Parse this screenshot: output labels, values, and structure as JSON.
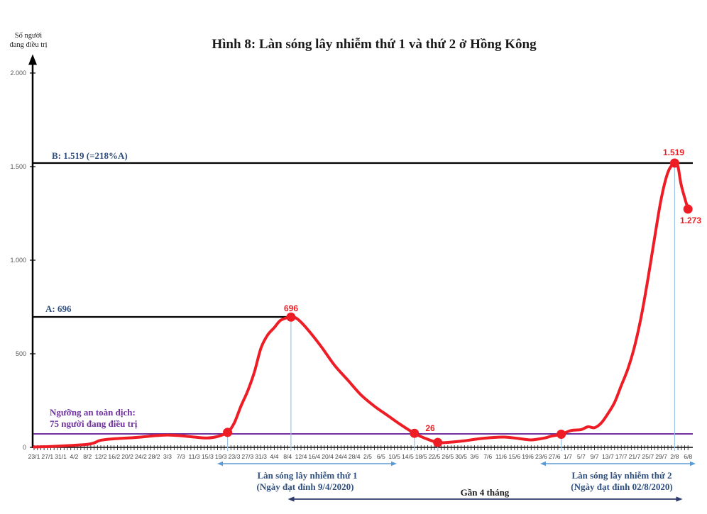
{
  "chart_data": {
    "type": "line",
    "title": "Hình 8: Làn sóng lây nhiễm thứ 1 và thứ 2 ở Hồng Kông",
    "ylabel": "Số người đang điều trị",
    "xlabel": "",
    "ylim": [
      0,
      2000
    ],
    "yticks": [
      0,
      500,
      1000,
      1500,
      2000
    ],
    "ytick_labels": [
      "0",
      "500",
      "1.000",
      "1.500",
      "2.000"
    ],
    "grid": false,
    "legend": null,
    "x_tick_labels": [
      "23/1",
      "27/1",
      "31/1",
      "4/2",
      "8/2",
      "12/2",
      "16/2",
      "20/2",
      "24/2",
      "28/2",
      "3/3",
      "7/3",
      "11/3",
      "15/3",
      "19/3",
      "23/3",
      "27/3",
      "31/3",
      "4/4",
      "8/4",
      "12/4",
      "16/4",
      "20/4",
      "24/4",
      "28/4",
      "2/5",
      "6/5",
      "10/5",
      "14/5",
      "18/5",
      "22/5",
      "26/5",
      "30/5",
      "3/6",
      "7/6",
      "11/6",
      "15/6",
      "19/6",
      "23/6",
      "27/6",
      "1/7",
      "5/7",
      "9/7",
      "13/7",
      "17/7",
      "21/7",
      "25/7",
      "29/7",
      "2/8",
      "6/8"
    ],
    "series": [
      {
        "name": "Số người đang điều trị",
        "color": "#ee1c25",
        "points": [
          {
            "day": 0,
            "date": "23/1",
            "value": 2
          },
          {
            "day": 4,
            "date": "27/1",
            "value": 4
          },
          {
            "day": 8,
            "date": "31/1",
            "value": 7
          },
          {
            "day": 12,
            "date": "4/2",
            "value": 11
          },
          {
            "day": 16,
            "date": "8/2",
            "value": 16
          },
          {
            "day": 18,
            "date": "10/2",
            "value": 24
          },
          {
            "day": 20,
            "date": "12/2",
            "value": 38
          },
          {
            "day": 24,
            "date": "16/2",
            "value": 46
          },
          {
            "day": 28,
            "date": "20/2",
            "value": 50
          },
          {
            "day": 32,
            "date": "24/2",
            "value": 55
          },
          {
            "day": 36,
            "date": "28/2",
            "value": 62
          },
          {
            "day": 40,
            "date": "3/3",
            "value": 66
          },
          {
            "day": 44,
            "date": "7/3",
            "value": 62
          },
          {
            "day": 48,
            "date": "11/3",
            "value": 55
          },
          {
            "day": 52,
            "date": "15/3",
            "value": 50
          },
          {
            "day": 55,
            "date": "18/3",
            "value": 58
          },
          {
            "day": 58,
            "date": "21/3",
            "value": 80
          },
          {
            "day": 60,
            "date": "23/3",
            "value": 130
          },
          {
            "day": 62,
            "date": "25/3",
            "value": 220
          },
          {
            "day": 64,
            "date": "27/3",
            "value": 300
          },
          {
            "day": 66,
            "date": "29/3",
            "value": 400
          },
          {
            "day": 68,
            "date": "31/3",
            "value": 530
          },
          {
            "day": 70,
            "date": "2/4",
            "value": 600
          },
          {
            "day": 72,
            "date": "4/4",
            "value": 640
          },
          {
            "day": 74,
            "date": "6/4",
            "value": 680
          },
          {
            "day": 77,
            "date": "9/4",
            "value": 696
          },
          {
            "day": 79,
            "date": "11/4",
            "value": 685
          },
          {
            "day": 82,
            "date": "14/4",
            "value": 630
          },
          {
            "day": 86,
            "date": "18/4",
            "value": 540
          },
          {
            "day": 90,
            "date": "22/4",
            "value": 440
          },
          {
            "day": 94,
            "date": "26/4",
            "value": 360
          },
          {
            "day": 98,
            "date": "30/4",
            "value": 280
          },
          {
            "day": 102,
            "date": "4/5",
            "value": 220
          },
          {
            "day": 106,
            "date": "8/5",
            "value": 170
          },
          {
            "day": 110,
            "date": "12/5",
            "value": 120
          },
          {
            "day": 114,
            "date": "16/5",
            "value": 75
          },
          {
            "day": 117,
            "date": "19/5",
            "value": 50
          },
          {
            "day": 121,
            "date": "23/5",
            "value": 26
          },
          {
            "day": 125,
            "date": "27/5",
            "value": 28
          },
          {
            "day": 129,
            "date": "31/5",
            "value": 35
          },
          {
            "day": 133,
            "date": "4/6",
            "value": 45
          },
          {
            "day": 137,
            "date": "8/6",
            "value": 52
          },
          {
            "day": 141,
            "date": "12/6",
            "value": 55
          },
          {
            "day": 145,
            "date": "16/6",
            "value": 48
          },
          {
            "day": 149,
            "date": "20/6",
            "value": 40
          },
          {
            "day": 153,
            "date": "24/6",
            "value": 50
          },
          {
            "day": 155,
            "date": "26/6",
            "value": 60
          },
          {
            "day": 158,
            "date": "29/6",
            "value": 70
          },
          {
            "day": 161,
            "date": "2/7",
            "value": 90
          },
          {
            "day": 164,
            "date": "5/7",
            "value": 95
          },
          {
            "day": 166,
            "date": "7/7",
            "value": 110
          },
          {
            "day": 168,
            "date": "9/7",
            "value": 105
          },
          {
            "day": 170,
            "date": "11/7",
            "value": 130
          },
          {
            "day": 172,
            "date": "13/7",
            "value": 180
          },
          {
            "day": 174,
            "date": "15/7",
            "value": 240
          },
          {
            "day": 176,
            "date": "17/7",
            "value": 330
          },
          {
            "day": 178,
            "date": "19/7",
            "value": 420
          },
          {
            "day": 180,
            "date": "21/7",
            "value": 540
          },
          {
            "day": 182,
            "date": "23/7",
            "value": 700
          },
          {
            "day": 184,
            "date": "25/7",
            "value": 900
          },
          {
            "day": 186,
            "date": "27/7",
            "value": 1120
          },
          {
            "day": 188,
            "date": "29/7",
            "value": 1330
          },
          {
            "day": 190,
            "date": "31/7",
            "value": 1470
          },
          {
            "day": 192,
            "date": "2/8",
            "value": 1519
          },
          {
            "day": 193,
            "date": "3/8",
            "value": 1500
          },
          {
            "day": 194,
            "date": "4/8",
            "value": 1400
          },
          {
            "day": 196,
            "date": "6/8",
            "value": 1273
          }
        ]
      }
    ],
    "markers": [
      {
        "day": 58,
        "value": 80,
        "label": ""
      },
      {
        "day": 77,
        "value": 696,
        "label": "696"
      },
      {
        "day": 114,
        "value": 75,
        "label": ""
      },
      {
        "day": 121,
        "value": 26,
        "label": "26"
      },
      {
        "day": 158,
        "value": 70,
        "label": ""
      },
      {
        "day": 192,
        "value": 1519,
        "label": "1.519"
      },
      {
        "day": 196,
        "value": 1273,
        "label": "1.273"
      }
    ],
    "reference_lines": [
      {
        "name": "peak-a-line",
        "value": 696,
        "label": "A: 696",
        "color": "#000000"
      },
      {
        "name": "peak-b-line",
        "value": 1519,
        "label": "B: 1.519 (=218%A)",
        "color": "#000000"
      },
      {
        "name": "safety-threshold-line",
        "value": 75,
        "label_line1": "Ngưỡng an toàn dịch:",
        "label_line2": "75 người đang điều trị",
        "color": "#7030a0"
      }
    ],
    "annotations": [
      {
        "name": "wave-1",
        "line1": "Làn sóng lây nhiễm thứ 1",
        "line2": "(Ngày đạt đỉnh 9/4/2020)"
      },
      {
        "name": "wave-2",
        "line1": "Làn sóng lây nhiễm thứ 2",
        "line2": "(Ngày đạt đỉnh 02/8/2020)"
      },
      {
        "name": "gap",
        "text": "Gần 4 tháng"
      }
    ]
  },
  "header": {
    "title": "Hình 8: Làn sóng lây nhiễm thứ 1 và thứ 2 ở Hồng Kông",
    "ylabel_line1": "Số người",
    "ylabel_line2": "đang điều trị"
  },
  "labels": {
    "peak_b": "B: 1.519 (=218%A)",
    "peak_a": "A: 696",
    "threshold_1": "Ngưỡng an toàn dịch:",
    "threshold_2": "75 người đang điều trị",
    "wave1_1": "Làn sóng lây nhiễm thứ 1",
    "wave1_2": "(Ngày đạt đỉnh 9/4/2020)",
    "wave2_1": "Làn sóng lây nhiễm thứ 2",
    "wave2_2": "(Ngày đạt đỉnh 02/8/2020)",
    "gap": "Gần 4 tháng",
    "m696": "696",
    "m26": "26",
    "m1519": "1.519",
    "m1273": "1.273"
  },
  "colors": {
    "line": "#ee1c25",
    "threshold": "#7030a0",
    "label_blue": "#2f4f7f",
    "arrow_blue": "#5b9bd5",
    "arrow_navy": "#2e3a6e"
  }
}
